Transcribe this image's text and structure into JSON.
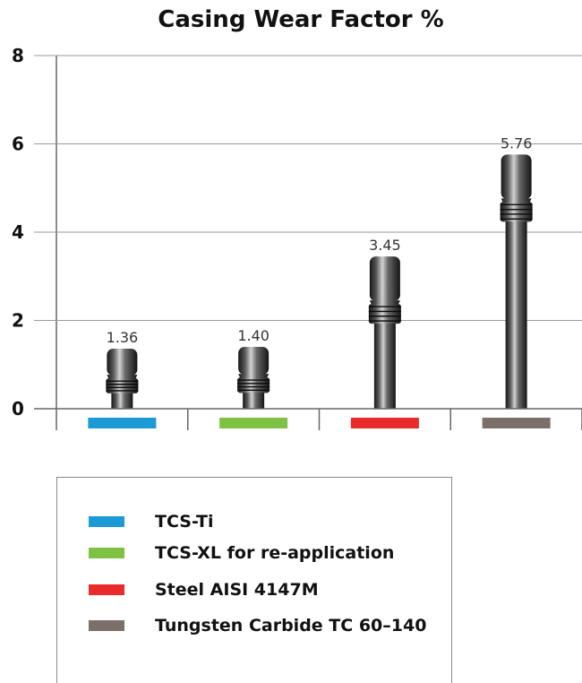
{
  "chart_data": {
    "type": "bar",
    "title": "Casing Wear Factor %",
    "categories": [
      "TCS-Ti",
      "TCS-XL for re-application",
      "Steel AISI 4147M",
      "Tungsten Carbide TC 60–140"
    ],
    "values": [
      1.36,
      1.4,
      3.45,
      5.76
    ],
    "data_labels": [
      "1.36",
      "1.40",
      "3.45",
      "5.76"
    ],
    "colors": [
      "#1b9ad6",
      "#7dc242",
      "#ea2b2b",
      "#7c6f6a"
    ],
    "yticks": [
      "0",
      "2",
      "4",
      "6",
      "8"
    ],
    "ylim": [
      0,
      8
    ],
    "grid": true,
    "legend_position": "bottom-left",
    "bar_style": "drill-pipe"
  }
}
